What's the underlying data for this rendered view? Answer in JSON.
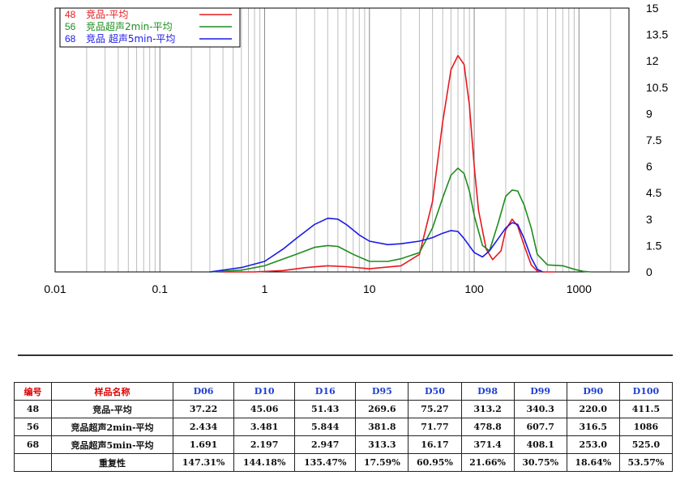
{
  "chart_data": {
    "type": "line",
    "x_scale": "log",
    "xlim": [
      0.01,
      3000
    ],
    "ylim": [
      0,
      15
    ],
    "x_ticks": [
      "0.01",
      "0.1",
      "1",
      "10",
      "100",
      "1000"
    ],
    "y_ticks": [
      "0",
      "1.5",
      "3",
      "4.5",
      "6",
      "7.5",
      "9",
      "10.5",
      "12",
      "13.5",
      "15"
    ],
    "grid": true,
    "legend_position": "top-left",
    "series": [
      {
        "id": "48",
        "name": "竞品-平均",
        "color": "#e8181e",
        "x": [
          0.4,
          0.8,
          1.5,
          2.5,
          4,
          6,
          10,
          20,
          30,
          40,
          50,
          60,
          70,
          80,
          90,
          100,
          110,
          130,
          150,
          180,
          200,
          230,
          260,
          300,
          350,
          400,
          450,
          500,
          600
        ],
        "y": [
          0,
          0,
          0.08,
          0.25,
          0.35,
          0.3,
          0.18,
          0.35,
          1.0,
          4.0,
          8.5,
          11.5,
          12.3,
          11.8,
          9.5,
          6.0,
          3.5,
          1.3,
          0.7,
          1.2,
          2.4,
          3.0,
          2.6,
          1.5,
          0.4,
          0.05,
          0,
          0,
          0
        ]
      },
      {
        "id": "56",
        "name": "竞品超声2min-平均",
        "color": "#1e8c1e",
        "x": [
          0.3,
          0.6,
          1,
          2,
          3,
          4,
          5,
          7,
          10,
          15,
          20,
          30,
          40,
          50,
          60,
          70,
          80,
          90,
          100,
          120,
          140,
          170,
          200,
          230,
          260,
          300,
          350,
          400,
          500,
          700,
          900,
          1100,
          1300
        ],
        "y": [
          0,
          0.1,
          0.35,
          1.0,
          1.4,
          1.5,
          1.45,
          1.0,
          0.6,
          0.6,
          0.75,
          1.1,
          2.5,
          4.2,
          5.5,
          5.9,
          5.6,
          4.6,
          3.2,
          1.5,
          1.2,
          2.8,
          4.3,
          4.65,
          4.6,
          3.8,
          2.5,
          1.0,
          0.4,
          0.35,
          0.15,
          0.03,
          0
        ]
      },
      {
        "id": "68",
        "name": "竞品 超声5min-平均",
        "color": "#1a1ae6",
        "x": [
          0.3,
          0.6,
          1,
          1.5,
          2,
          3,
          4,
          5,
          6,
          8,
          10,
          15,
          20,
          30,
          40,
          50,
          60,
          70,
          80,
          100,
          120,
          140,
          170,
          200,
          230,
          260,
          300,
          350,
          400,
          450
        ],
        "y": [
          0,
          0.25,
          0.6,
          1.3,
          1.9,
          2.7,
          3.05,
          3.0,
          2.7,
          2.1,
          1.75,
          1.55,
          1.6,
          1.75,
          1.95,
          2.2,
          2.35,
          2.3,
          1.9,
          1.1,
          0.85,
          1.2,
          1.9,
          2.5,
          2.8,
          2.7,
          1.9,
          0.8,
          0.15,
          0
        ]
      }
    ]
  },
  "table": {
    "headers": [
      "编号",
      "样品名称",
      "D06",
      "D10",
      "D16",
      "D95",
      "D50",
      "D98",
      "D99",
      "D90",
      "D100"
    ],
    "rows": [
      [
        "48",
        "竞品-平均",
        "37.22",
        "45.06",
        "51.43",
        "269.6",
        "75.27",
        "313.2",
        "340.3",
        "220.0",
        "411.5"
      ],
      [
        "56",
        "竞品超声2min-平均",
        "2.434",
        "3.481",
        "5.844",
        "381.8",
        "71.77",
        "478.8",
        "607.7",
        "316.5",
        "1086"
      ],
      [
        "68",
        "竞品超声5min-平均",
        "1.691",
        "2.197",
        "2.947",
        "313.3",
        "16.17",
        "371.4",
        "408.1",
        "253.0",
        "525.0"
      ],
      [
        "",
        "重复性",
        "147.31%",
        "144.18%",
        "135.47%",
        "17.59%",
        "60.95%",
        "21.66%",
        "30.75%",
        "18.64%",
        "53.57%"
      ]
    ]
  }
}
